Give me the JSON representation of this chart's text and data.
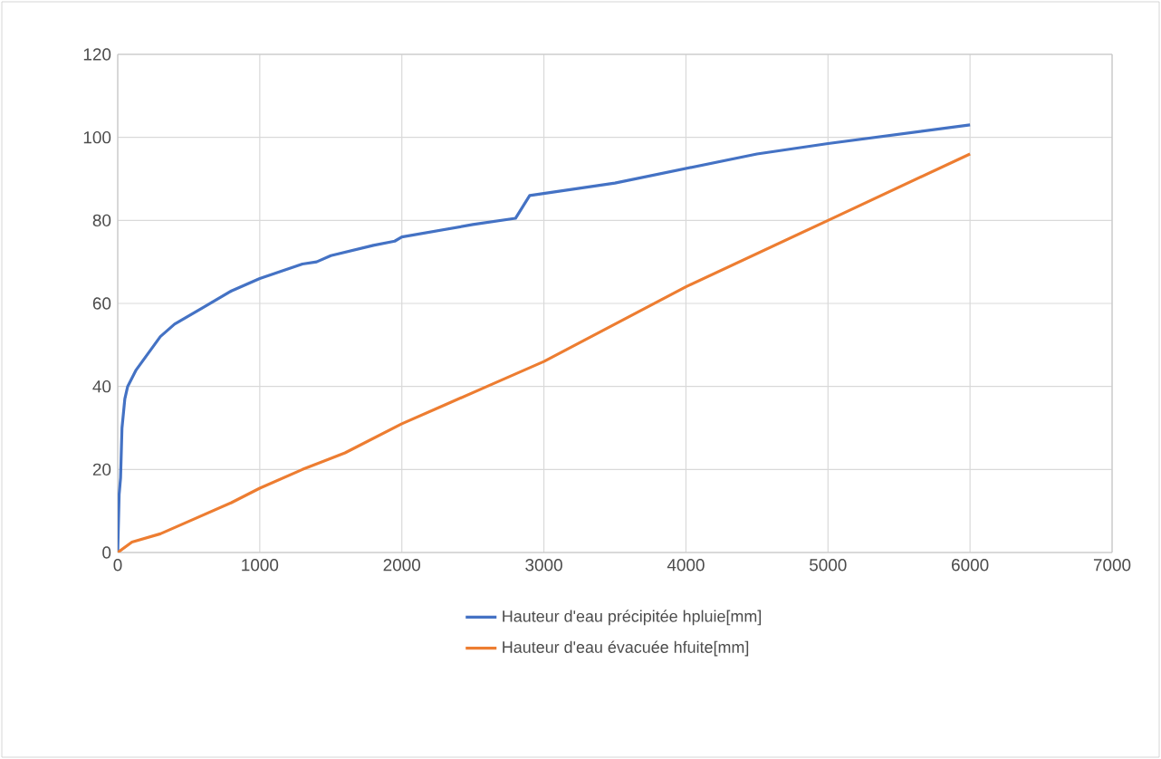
{
  "chart_data": {
    "type": "line",
    "xlim": [
      0,
      7000
    ],
    "xticks": [
      0,
      1000,
      2000,
      3000,
      4000,
      5000,
      6000,
      7000
    ],
    "ylim": [
      0,
      120
    ],
    "yticks": [
      0,
      20,
      40,
      60,
      80,
      100,
      120
    ],
    "grid": true,
    "legend": "bottom",
    "marker": "none",
    "line_style": "solid",
    "series": [
      {
        "name": "Hauteur d'eau précipitée hpluie[mm]",
        "color": "#4472c4",
        "x": [
          0,
          10,
          20,
          30,
          50,
          70,
          130,
          300,
          400,
          600,
          800,
          1000,
          1300,
          1400,
          1500,
          1800,
          1950,
          2000,
          2500,
          2800,
          2900,
          3500,
          4500,
          5000,
          6000
        ],
        "values": [
          0,
          14,
          18,
          30,
          37,
          40,
          44,
          52,
          55,
          59,
          63,
          66,
          69.5,
          70,
          71.5,
          74,
          75,
          76,
          79,
          80.5,
          86,
          89,
          96,
          98.5,
          103
        ]
      },
      {
        "name": "Hauteur d'eau évacuée hfuite[mm]",
        "color": "#ed7d31",
        "x": [
          0,
          100,
          300,
          500,
          800,
          1000,
          1300,
          1600,
          2000,
          2300,
          2600,
          3000,
          3500,
          4000,
          5000,
          6000
        ],
        "values": [
          0,
          2.5,
          4.5,
          7.5,
          12,
          15.5,
          20,
          24,
          31,
          35.5,
          40,
          46,
          55,
          64,
          80,
          96
        ]
      }
    ]
  }
}
